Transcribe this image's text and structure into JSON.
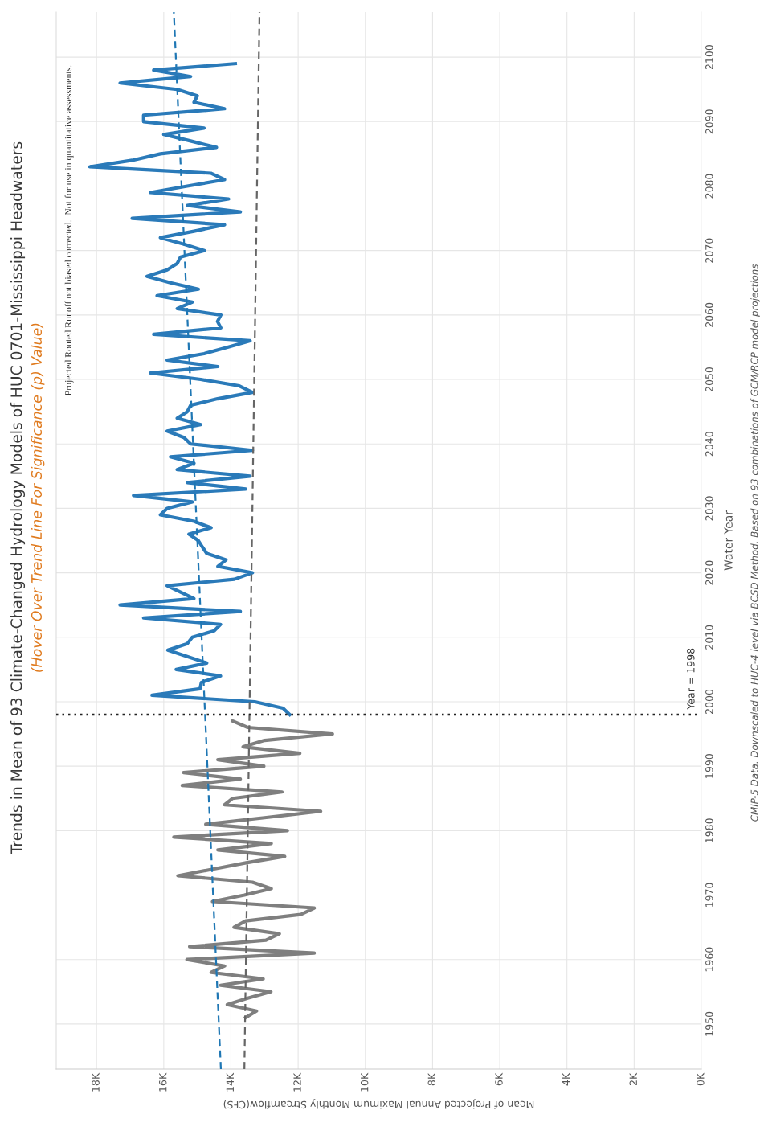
{
  "chart_data": {
    "type": "line",
    "title": "Trends in Mean of 93 Climate-Changed Hydrology Models of HUC 0701-Mississippi Headwaters",
    "subtitle": "(Hover Over Trend Line For Significance (p) Value)",
    "xlabel": "Mean of Projected Annual Maximum Monthly Streamflow(CFS)",
    "ylabel": "Water Year",
    "annotations": [
      "Projected Routed Runoff not biased corrected.  Not for use in quantitative assessments.",
      "CMIP-5 Data. Downscaled to HUC-4 level via BCSD Method. Based on 93 combinations of GCM/RCP model projections"
    ],
    "series": [
      {
        "color": "#7f7f7f",
        "values": [
          1951,
          1952,
          1953,
          1954,
          1955,
          1956,
          1957,
          1958,
          1959,
          1960,
          1961,
          1962,
          1963,
          1964,
          1965,
          1966,
          1967,
          1968,
          1969,
          1970,
          1971,
          1972,
          1973,
          1974,
          1975,
          1976,
          1977,
          1978,
          1979,
          1980,
          1981,
          1982,
          1983,
          1984,
          1985,
          1986,
          1987,
          1988,
          1989,
          1990,
          1991,
          1992,
          1993,
          1994,
          1995,
          1996,
          1997
        ],
        "x": [
          13560,
          13240,
          14110,
          13500,
          12810,
          14310,
          13040,
          14590,
          14190,
          15310,
          11520,
          15230,
          12960,
          12560,
          13910,
          13560,
          11920,
          11520,
          14550,
          13600,
          12800,
          13360,
          15580,
          14570,
          13550,
          12400,
          14390,
          12800,
          15700,
          12320,
          14750,
          13000,
          11330,
          14190,
          13950,
          12480,
          15450,
          13720,
          15410,
          13020,
          14390,
          11950,
          13640,
          13000,
          10980,
          13500,
          13950
        ]
      },
      {
        "color": "#2a7ab9",
        "values": [
          1998,
          1999,
          2000,
          2001,
          2002,
          2003,
          2004,
          2005,
          2006,
          2007,
          2008,
          2009,
          2010,
          2011,
          2012,
          2013,
          2014,
          2015,
          2016,
          2017,
          2018,
          2019,
          2020,
          2021,
          2022,
          2023,
          2024,
          2025,
          2026,
          2027,
          2028,
          2029,
          2030,
          2031,
          2032,
          2033,
          2034,
          2035,
          2036,
          2037,
          2038,
          2039,
          2040,
          2041,
          2042,
          2043,
          2044,
          2045,
          2046,
          2047,
          2048,
          2049,
          2050,
          2051,
          2052,
          2053,
          2054,
          2055,
          2056,
          2057,
          2058,
          2059,
          2060,
          2061,
          2062,
          2063,
          2064,
          2065,
          2066,
          2067,
          2068,
          2069,
          2070,
          2071,
          2072,
          2073,
          2074,
          2075,
          2076,
          2077,
          2078,
          2079,
          2080,
          2081,
          2082,
          2083,
          2084,
          2085,
          2086,
          2087,
          2088,
          2089,
          2090,
          2091,
          2092,
          2093,
          2094,
          2095,
          2096,
          2097,
          2098,
          2099
        ],
        "x": [
          12250,
          12450,
          13290,
          16350,
          14920,
          14880,
          14310,
          15630,
          14720,
          15300,
          15880,
          15300,
          15150,
          14500,
          14310,
          16600,
          13720,
          17300,
          15100,
          15500,
          15900,
          13900,
          13360,
          14390,
          14150,
          14720,
          14850,
          14970,
          15250,
          14590,
          15100,
          16100,
          15900,
          15150,
          16900,
          13560,
          15300,
          13430,
          15600,
          15100,
          15800,
          13360,
          15200,
          15400,
          15900,
          14900,
          15600,
          15300,
          15200,
          14400,
          13360,
          13750,
          14900,
          16400,
          14390,
          15900,
          14800,
          14100,
          13430,
          16300,
          14300,
          14400,
          14300,
          15600,
          15150,
          16200,
          14970,
          15800,
          16500,
          15900,
          15600,
          15500,
          14790,
          15400,
          16100,
          15100,
          14190,
          16940,
          13720,
          15300,
          14070,
          16400,
          15300,
          14190,
          14600,
          18200,
          16940,
          16100,
          14430,
          15200,
          16000,
          14800,
          16600,
          16600,
          14190,
          15100,
          15000,
          15600,
          17300,
          15200,
          16300,
          13870
        ]
      },
      {
        "color": "#1f77b4",
        "line_style": "dashed",
        "x": [
          14300,
          15700
        ],
        "values": [
          1943,
          2107
        ]
      },
      {
        "color": "#666666",
        "line_style": "dashed",
        "x": [
          13600,
          13150
        ],
        "values": [
          1943,
          2107
        ]
      }
    ],
    "ylim": [
      1943,
      2107
    ],
    "yticks": [
      1950,
      1960,
      1970,
      1980,
      1990,
      2000,
      2010,
      2020,
      2030,
      2040,
      2050,
      2060,
      2070,
      2080,
      2090,
      2100
    ],
    "xlim": [
      19200,
      0
    ],
    "xticks": [
      {
        "value": 0,
        "label": "0K"
      },
      {
        "value": 2000,
        "label": "2K"
      },
      {
        "value": 4000,
        "label": "4K"
      },
      {
        "value": 6000,
        "label": "6K"
      },
      {
        "value": 8000,
        "label": "8K"
      },
      {
        "value": 10000,
        "label": "10K"
      },
      {
        "value": 12000,
        "label": "12K"
      },
      {
        "value": 14000,
        "label": "14K"
      },
      {
        "value": 16000,
        "label": "16K"
      },
      {
        "value": 18000,
        "label": "18K"
      }
    ],
    "ref_lines": [
      {
        "axis": "y",
        "value": 1998,
        "label": "Year = 1998",
        "color": "#222222",
        "line_style": "dotted"
      }
    ],
    "grid": true,
    "marker": "none",
    "line_style": "solid"
  }
}
